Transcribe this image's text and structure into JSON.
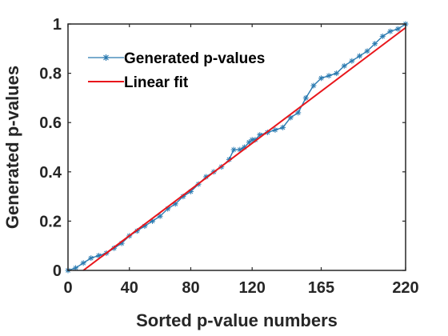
{
  "chart_data": {
    "type": "line",
    "title": "",
    "xlabel": "Sorted p-value numbers",
    "ylabel": "Generated p-values",
    "xlim": [
      0,
      220
    ],
    "ylim": [
      0,
      1
    ],
    "x_ticks": [
      0,
      40,
      80,
      120,
      165,
      220
    ],
    "x_tick_labels": [
      "0",
      "40",
      "80",
      "120",
      "165",
      "220"
    ],
    "y_ticks": [
      0,
      0.2,
      0.4,
      0.6,
      0.8,
      1
    ],
    "y_tick_labels": [
      "0",
      "0.2",
      "0.4",
      "0.6",
      "0.8",
      "1"
    ],
    "grid": false,
    "legend_position": "top-left",
    "series": [
      {
        "name": "Generated p-values",
        "color": "#2a7ab0",
        "marker": "asterisk",
        "x": [
          0,
          5,
          10,
          15,
          20,
          25,
          30,
          35,
          40,
          45,
          50,
          55,
          60,
          65,
          70,
          75,
          80,
          85,
          90,
          95,
          100,
          105,
          108,
          112,
          115,
          118,
          120,
          122,
          125,
          130,
          135,
          140,
          145,
          150,
          155,
          160,
          165,
          170,
          175,
          180,
          185,
          190,
          195,
          200,
          205,
          210,
          215,
          220
        ],
        "y": [
          0.0,
          0.01,
          0.03,
          0.05,
          0.06,
          0.07,
          0.09,
          0.11,
          0.14,
          0.16,
          0.18,
          0.2,
          0.22,
          0.25,
          0.27,
          0.3,
          0.32,
          0.35,
          0.38,
          0.4,
          0.42,
          0.45,
          0.49,
          0.49,
          0.5,
          0.52,
          0.53,
          0.53,
          0.55,
          0.56,
          0.57,
          0.58,
          0.62,
          0.64,
          0.7,
          0.75,
          0.78,
          0.79,
          0.8,
          0.83,
          0.85,
          0.87,
          0.89,
          0.92,
          0.95,
          0.97,
          0.98,
          1.0
        ]
      },
      {
        "name": "Linear fit",
        "color": "#e8161b",
        "marker": "none",
        "x": [
          10,
          220
        ],
        "y": [
          0.0,
          0.985
        ]
      }
    ]
  },
  "legend": {
    "items": [
      {
        "label": "Generated p-values"
      },
      {
        "label": "Linear fit"
      }
    ]
  }
}
